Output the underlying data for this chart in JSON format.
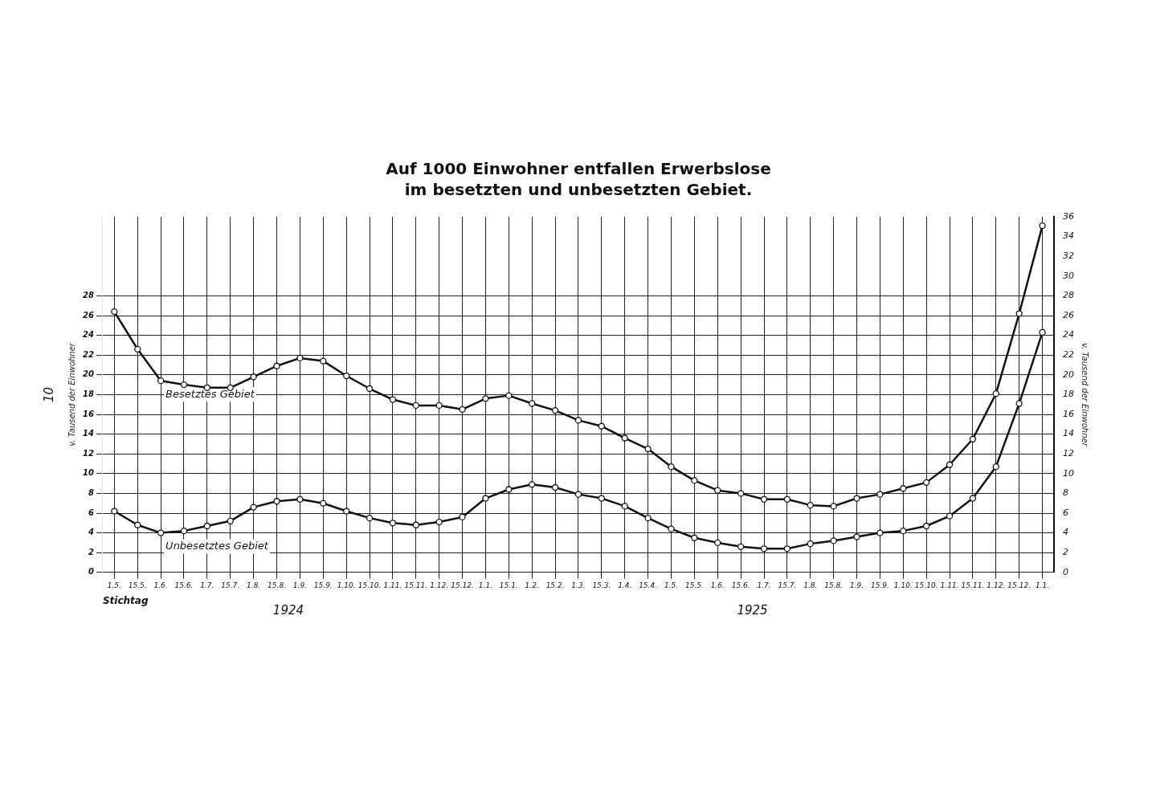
{
  "chart_data": {
    "type": "line",
    "title": "Auf 1000 Einwohner entfallen Erwerbslose",
    "subtitle": "im besetzten und unbesetzten Gebiet.",
    "xlabel": "Stichtag",
    "ylabel": "v. Tausend der Einwohner",
    "y2label": "v. Tausend der Einwohner",
    "categories": [
      "1.5.",
      "15.5.",
      "1.6.",
      "15.6.",
      "1.7.",
      "15.7.",
      "1.8.",
      "15.8.",
      "1.9.",
      "15.9.",
      "1.10.",
      "15.10.",
      "1.11.",
      "15.11.",
      "1.12.",
      "15.12.",
      "1.1.",
      "15.1.",
      "1.2.",
      "15.2.",
      "1.3.",
      "15.3.",
      "1.4.",
      "15.4.",
      "1.5.",
      "15.5.",
      "1.6.",
      "15.6.",
      "1.7.",
      "15.7.",
      "1.8.",
      "15.8.",
      "1.9.",
      "15.9.",
      "1.10.",
      "15.10.",
      "1.11.",
      "15.11.",
      "1.12.",
      "15.12.",
      "1.1."
    ],
    "series": [
      {
        "name": "Besetztes Gebiet",
        "color": "#111111",
        "values": [
          26.4,
          22.6,
          19.4,
          19.0,
          18.7,
          18.7,
          19.8,
          20.9,
          21.7,
          21.4,
          19.9,
          18.6,
          17.5,
          16.9,
          16.9,
          16.5,
          17.6,
          17.9,
          17.1,
          16.4,
          15.4,
          14.8,
          13.6,
          12.5,
          10.7,
          9.3,
          8.3,
          8.0,
          7.4,
          7.4,
          6.8,
          6.7,
          7.5,
          7.9,
          8.5,
          9.1,
          10.9,
          13.5,
          18.1,
          26.2,
          35.1
        ]
      },
      {
        "name": "Unbesetztes Gebiet",
        "color": "#111111",
        "values": [
          6.2,
          4.8,
          4.0,
          4.2,
          4.7,
          5.2,
          6.6,
          7.2,
          7.4,
          7.0,
          6.2,
          5.5,
          5.0,
          4.8,
          5.1,
          5.6,
          7.5,
          8.4,
          8.9,
          8.6,
          7.9,
          7.5,
          6.7,
          5.5,
          4.4,
          3.5,
          3.0,
          2.6,
          2.4,
          2.4,
          2.9,
          3.2,
          3.6,
          4.0,
          4.2,
          4.7,
          5.7,
          7.5,
          10.7,
          17.1,
          24.3
        ]
      }
    ],
    "ylim": [
      0,
      36
    ],
    "yticks": [
      0,
      2,
      4,
      6,
      8,
      10,
      12,
      14,
      16,
      18,
      20,
      22,
      24,
      26,
      28
    ],
    "y2lim": [
      0,
      36
    ],
    "y2ticks": [
      0,
      2,
      4,
      6,
      8,
      10,
      12,
      14,
      16,
      18,
      20,
      22,
      24,
      26,
      28,
      30,
      32,
      34,
      36
    ],
    "annotations": [
      "1924",
      "1925",
      "10"
    ],
    "grid": true,
    "legend": false,
    "marker": "circle",
    "line_style": "solid"
  }
}
